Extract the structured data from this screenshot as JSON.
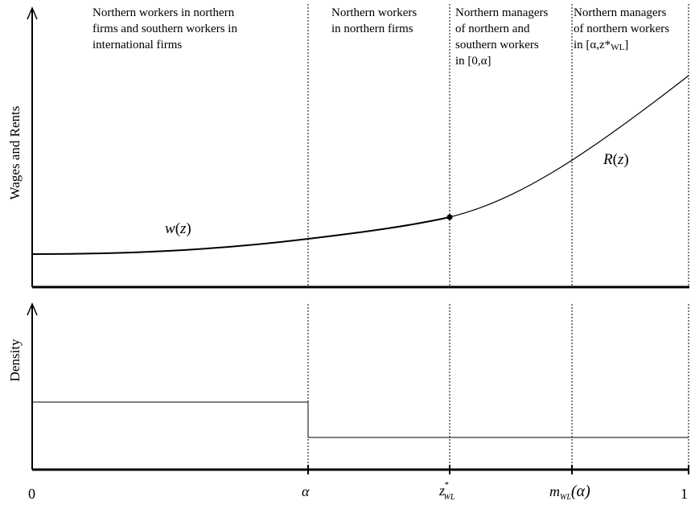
{
  "top_panel": {
    "y_axis_label": "Wages and Rents",
    "region_labels": [
      {
        "lines": [
          "Northern workers in northern",
          "firms and southern workers in",
          " international firms"
        ]
      },
      {
        "lines": [
          "Northern workers",
          "in northern firms"
        ]
      },
      {
        "lines": [
          "Northern managers",
          "of northern and",
          "southern workers",
          " in [0,α]"
        ]
      },
      {
        "lines": [
          "Northern managers",
          "of northern workers",
          "in [α,z*",
          "WL",
          "]"
        ]
      }
    ],
    "curve_w_label": {
      "func": "w",
      "arg": "z"
    },
    "curve_r_label": {
      "func": "R",
      "arg": "z"
    }
  },
  "bottom_panel": {
    "y_axis_label": "Density"
  },
  "x_ticks": {
    "zero": "0",
    "alpha": "α",
    "z_star": {
      "base": "z",
      "sup": "*",
      "sub": "WL"
    },
    "m_wl": {
      "base": "m",
      "sub": "WL",
      "arg": "(α)"
    },
    "one": "1"
  },
  "colors": {
    "line": "#000000",
    "background": "#ffffff"
  }
}
